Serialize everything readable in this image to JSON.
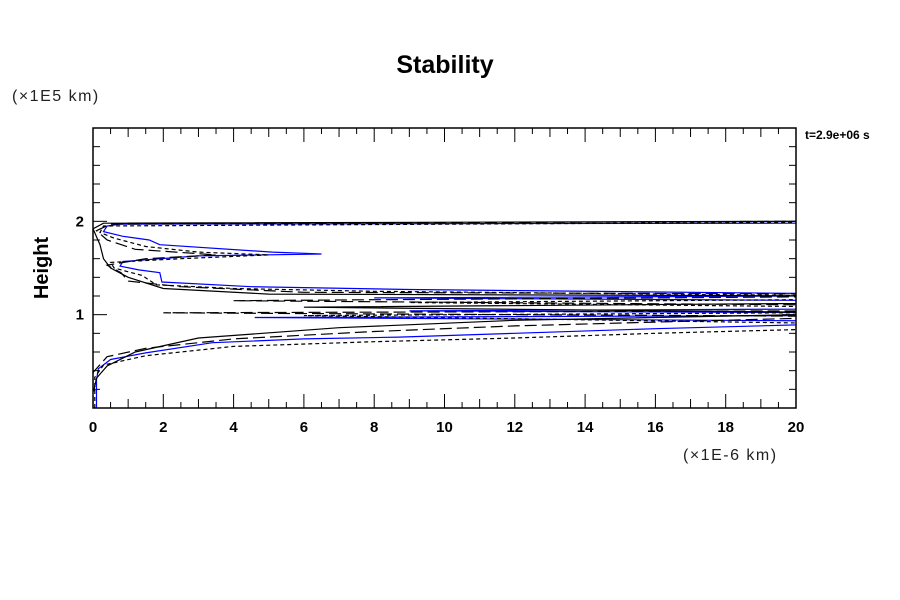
{
  "chart_data": {
    "type": "line",
    "title": "Stability",
    "xlabel": "",
    "x_unit": "(×1E-6 km)",
    "ylabel": "Height",
    "y_unit": "(×1E5 km)",
    "annotation": "t=2.9e+06 s",
    "xlim": [
      0,
      20
    ],
    "ylim": [
      0,
      3
    ],
    "x_ticks": [
      "0",
      "2",
      "4",
      "6",
      "8",
      "10",
      "12",
      "14",
      "16",
      "18",
      "20"
    ],
    "y_ticks": [
      "1",
      "2"
    ],
    "grid": false,
    "series": [
      {
        "name": "blue-solid",
        "color": "#0000ff",
        "dash": "solid",
        "points": [
          [
            0.1,
            0
          ],
          [
            0.1,
            0.3
          ],
          [
            0.15,
            0.42
          ],
          [
            0.5,
            0.52
          ],
          [
            1.5,
            0.59
          ],
          [
            3.4,
            0.7
          ],
          [
            6,
            0.74
          ],
          [
            8.7,
            0.76
          ],
          [
            12,
            0.8
          ],
          [
            16,
            0.85
          ],
          [
            20,
            0.89
          ],
          [
            22,
            0.93
          ],
          [
            4.6,
            0.97
          ],
          [
            20,
            0.99
          ],
          [
            22,
            1.02
          ],
          [
            9,
            1.04
          ],
          [
            20,
            1.06
          ],
          [
            22,
            1.15
          ],
          [
            8,
            1.18
          ],
          [
            20,
            1.2
          ],
          [
            22,
            1.22
          ],
          [
            9,
            1.27
          ],
          [
            4.5,
            1.3
          ],
          [
            1.96,
            1.35
          ],
          [
            1.9,
            1.45
          ],
          [
            1.3,
            1.48
          ],
          [
            0.77,
            1.52
          ],
          [
            0.85,
            1.57
          ],
          [
            3,
            1.63
          ],
          [
            6.5,
            1.65
          ],
          [
            5.1,
            1.67
          ],
          [
            1.9,
            1.75
          ],
          [
            1.6,
            1.8
          ],
          [
            0.85,
            1.84
          ],
          [
            0.3,
            1.89
          ],
          [
            0.4,
            1.95
          ],
          [
            0.77,
            1.97
          ],
          [
            20,
            1.98
          ]
        ]
      },
      {
        "name": "black-short-dash",
        "color": "#000000",
        "dash": "short",
        "points": [
          [
            0.05,
            0
          ],
          [
            0.05,
            0.33
          ],
          [
            0.3,
            0.46
          ],
          [
            1.5,
            0.56
          ],
          [
            4,
            0.66
          ],
          [
            8,
            0.71
          ],
          [
            12,
            0.75
          ],
          [
            16,
            0.8
          ],
          [
            20,
            0.84
          ],
          [
            22,
            0.9
          ],
          [
            6,
            0.99
          ],
          [
            20,
            1.02
          ],
          [
            22,
            1.08
          ],
          [
            9,
            1.13
          ],
          [
            20,
            1.16
          ],
          [
            22,
            1.2
          ],
          [
            8,
            1.25
          ],
          [
            4,
            1.28
          ],
          [
            1.8,
            1.32
          ],
          [
            1.4,
            1.42
          ],
          [
            0.6,
            1.5
          ],
          [
            0.5,
            1.56
          ],
          [
            2.5,
            1.6
          ],
          [
            5,
            1.64
          ],
          [
            3,
            1.67
          ],
          [
            1.5,
            1.73
          ],
          [
            0.6,
            1.82
          ],
          [
            0.2,
            1.88
          ],
          [
            0.3,
            1.95
          ],
          [
            20,
            1.99
          ]
        ]
      },
      {
        "name": "black-long-dash",
        "color": "#000000",
        "dash": "long",
        "points": [
          [
            0,
            0
          ],
          [
            0,
            0.38
          ],
          [
            0.4,
            0.55
          ],
          [
            1.5,
            0.64
          ],
          [
            4,
            0.74
          ],
          [
            8,
            0.82
          ],
          [
            12,
            0.88
          ],
          [
            16,
            0.92
          ],
          [
            20,
            0.96
          ],
          [
            22,
            0.98
          ],
          [
            2,
            1.02
          ],
          [
            20,
            1.04
          ],
          [
            22,
            1.1
          ],
          [
            4,
            1.15
          ],
          [
            20,
            1.19
          ],
          [
            22,
            1.22
          ],
          [
            6,
            1.24
          ],
          [
            2.5,
            1.3
          ],
          [
            1,
            1.36
          ],
          [
            0.8,
            1.45
          ],
          [
            0.4,
            1.53
          ],
          [
            1.5,
            1.6
          ],
          [
            3.5,
            1.64
          ],
          [
            1.2,
            1.7
          ],
          [
            0.4,
            1.8
          ],
          [
            0.1,
            1.9
          ],
          [
            0.5,
            1.97
          ],
          [
            20,
            2.0
          ]
        ]
      },
      {
        "name": "black-solid",
        "color": "#000000",
        "dash": "solid",
        "points": [
          [
            0.02,
            0.18
          ],
          [
            0.1,
            0.32
          ],
          [
            0.4,
            0.45
          ],
          [
            1.2,
            0.6
          ],
          [
            3,
            0.75
          ],
          [
            7,
            0.86
          ],
          [
            12,
            0.94
          ],
          [
            20,
            1.0
          ],
          [
            22,
            1.02
          ],
          [
            6,
            1.08
          ],
          [
            20,
            1.12
          ],
          [
            22,
            1.2
          ],
          [
            5,
            1.22
          ],
          [
            2,
            1.28
          ],
          [
            1,
            1.4
          ],
          [
            0.5,
            1.5
          ],
          [
            0.3,
            1.6
          ],
          [
            0.2,
            1.75
          ],
          [
            0,
            1.92
          ],
          [
            0.3,
            1.98
          ],
          [
            20,
            2.0
          ]
        ]
      }
    ]
  }
}
